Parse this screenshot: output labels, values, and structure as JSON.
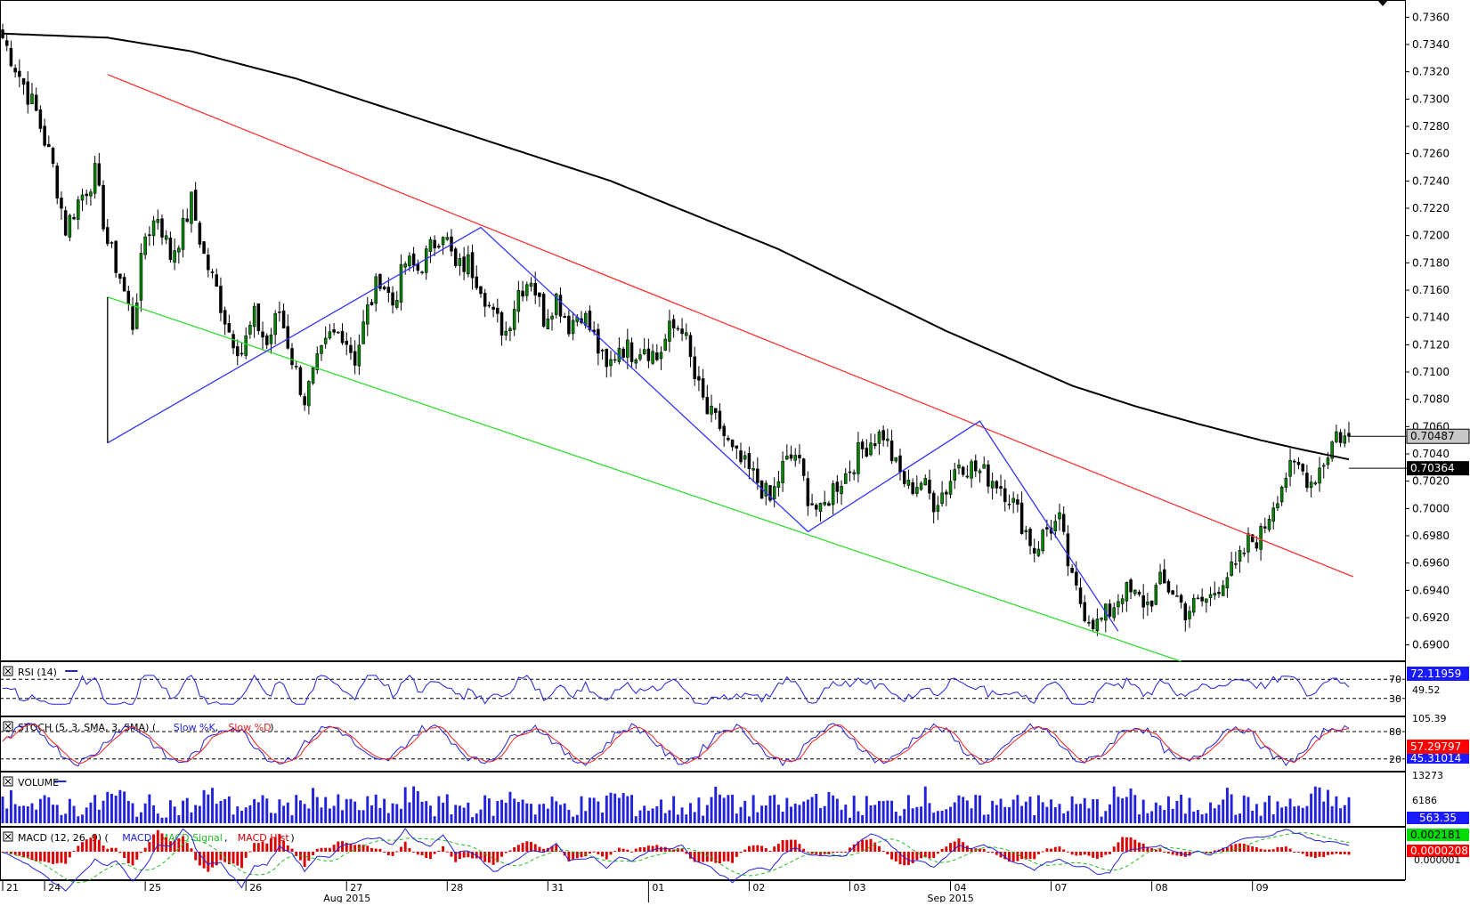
{
  "chart_data": {
    "type": "candlestick",
    "instrument_timeframe": "hourly",
    "price_axis": {
      "ylim": [
        0.689,
        0.737
      ],
      "ticks": [
        "0.7360",
        "0.7340",
        "0.7320",
        "0.7300",
        "0.7280",
        "0.7260",
        "0.7240",
        "0.7220",
        "0.7200",
        "0.7180",
        "0.7160",
        "0.7140",
        "0.7120",
        "0.7100",
        "0.7080",
        "0.7060",
        "0.7040",
        "0.7020",
        "0.7000",
        "0.6980",
        "0.6960",
        "0.6940",
        "0.6920",
        "0.6900"
      ],
      "current_price_label": "0.70487",
      "ma_price_label": "0.70364"
    },
    "x_axis": {
      "day_labels": [
        "21",
        "24",
        "25",
        "26",
        "27",
        "28",
        "31",
        "01",
        "02",
        "03",
        "04",
        "07",
        "08",
        "09"
      ],
      "month_labels": [
        "Aug 2015",
        "Sep 2015"
      ]
    },
    "price_anchors": [
      [
        0,
        0.7345
      ],
      [
        8,
        0.729
      ],
      [
        12,
        0.725
      ],
      [
        15,
        0.7205
      ],
      [
        18,
        0.7225
      ],
      [
        22,
        0.7245
      ],
      [
        25,
        0.7195
      ],
      [
        28,
        0.717
      ],
      [
        31,
        0.7135
      ],
      [
        34,
        0.72
      ],
      [
        37,
        0.7215
      ],
      [
        40,
        0.7185
      ],
      [
        43,
        0.7205
      ],
      [
        45,
        0.7225
      ],
      [
        48,
        0.7185
      ],
      [
        51,
        0.716
      ],
      [
        54,
        0.713
      ],
      [
        57,
        0.7115
      ],
      [
        60,
        0.714
      ],
      [
        63,
        0.712
      ],
      [
        66,
        0.7145
      ],
      [
        69,
        0.711
      ],
      [
        72,
        0.708
      ],
      [
        75,
        0.7105
      ],
      [
        78,
        0.7125
      ],
      [
        81,
        0.713
      ],
      [
        84,
        0.711
      ],
      [
        87,
        0.7145
      ],
      [
        90,
        0.717
      ],
      [
        93,
        0.715
      ],
      [
        96,
        0.718
      ],
      [
        99,
        0.7175
      ],
      [
        102,
        0.719
      ],
      [
        105,
        0.7205
      ],
      [
        108,
        0.7175
      ],
      [
        111,
        0.718
      ],
      [
        114,
        0.7165
      ],
      [
        117,
        0.714
      ],
      [
        120,
        0.713
      ],
      [
        123,
        0.716
      ],
      [
        126,
        0.717
      ],
      [
        129,
        0.714
      ],
      [
        132,
        0.7155
      ],
      [
        135,
        0.7135
      ],
      [
        138,
        0.7145
      ],
      [
        141,
        0.7125
      ],
      [
        144,
        0.71
      ],
      [
        147,
        0.712
      ],
      [
        150,
        0.7115
      ],
      [
        153,
        0.712
      ],
      [
        156,
        0.711
      ],
      [
        159,
        0.713
      ],
      [
        162,
        0.7135
      ],
      [
        165,
        0.7095
      ],
      [
        168,
        0.707
      ],
      [
        171,
        0.706
      ],
      [
        174,
        0.704
      ],
      [
        177,
        0.703
      ],
      [
        180,
        0.702
      ],
      [
        183,
        0.7005
      ],
      [
        186,
        0.703
      ],
      [
        189,
        0.704
      ],
      [
        192,
        0.701
      ],
      [
        195,
        0.6995
      ],
      [
        198,
        0.7015
      ],
      [
        201,
        0.7025
      ],
      [
        204,
        0.704
      ],
      [
        207,
        0.705
      ],
      [
        210,
        0.7055
      ],
      [
        213,
        0.703
      ],
      [
        216,
        0.7015
      ],
      [
        219,
        0.702
      ],
      [
        222,
        0.7005
      ],
      [
        225,
        0.7015
      ],
      [
        228,
        0.7035
      ],
      [
        231,
        0.703
      ],
      [
        234,
        0.7025
      ],
      [
        237,
        0.702
      ],
      [
        240,
        0.701
      ],
      [
        243,
        0.699
      ],
      [
        246,
        0.697
      ],
      [
        249,
        0.6985
      ],
      [
        252,
        0.699
      ],
      [
        255,
        0.6945
      ],
      [
        258,
        0.6925
      ],
      [
        261,
        0.6915
      ],
      [
        264,
        0.6925
      ],
      [
        267,
        0.694
      ],
      [
        270,
        0.6935
      ],
      [
        273,
        0.693
      ],
      [
        276,
        0.6945
      ],
      [
        279,
        0.694
      ],
      [
        282,
        0.6925
      ],
      [
        285,
        0.693
      ],
      [
        288,
        0.6935
      ],
      [
        291,
        0.695
      ],
      [
        294,
        0.6955
      ],
      [
        297,
        0.6975
      ],
      [
        300,
        0.698
      ],
      [
        303,
        0.7005
      ],
      [
        306,
        0.7025
      ],
      [
        309,
        0.703
      ],
      [
        312,
        0.702
      ],
      [
        315,
        0.7035
      ],
      [
        318,
        0.7055
      ],
      [
        321,
        0.705
      ]
    ],
    "sma_200": [
      [
        0,
        0.7348
      ],
      [
        25,
        0.7345
      ],
      [
        45,
        0.7335
      ],
      [
        70,
        0.7315
      ],
      [
        95,
        0.729
      ],
      [
        120,
        0.7265
      ],
      [
        145,
        0.724
      ],
      [
        165,
        0.7215
      ],
      [
        185,
        0.719
      ],
      [
        205,
        0.716
      ],
      [
        225,
        0.713
      ],
      [
        240,
        0.711
      ],
      [
        255,
        0.709
      ],
      [
        270,
        0.7075
      ],
      [
        285,
        0.7062
      ],
      [
        300,
        0.705
      ],
      [
        310,
        0.7043
      ],
      [
        321,
        0.7036
      ]
    ],
    "trendlines": [
      {
        "name": "channel-upper",
        "color": "#ff3333",
        "points": [
          [
            25,
            0.7318
          ],
          [
            322,
            0.695
          ]
        ]
      },
      {
        "name": "channel-lower",
        "color": "#33dd33",
        "points": [
          [
            25,
            0.7155
          ],
          [
            281,
            0.6888
          ]
        ]
      },
      {
        "name": "abcd-pattern",
        "color": "#3333ff",
        "points": [
          [
            25,
            0.7048
          ],
          [
            114,
            0.7206
          ],
          [
            192,
            0.6983
          ],
          [
            233,
            0.7064
          ],
          [
            266,
            0.691
          ]
        ]
      },
      {
        "name": "vertical-marker",
        "color": "#000000",
        "points": [
          [
            25,
            0.7155
          ],
          [
            25,
            0.7048
          ]
        ]
      }
    ],
    "indicators": {
      "rsi": {
        "label": "RSI (14)",
        "period": 14,
        "ylim": [
          0,
          100
        ],
        "levels": [
          70,
          30
        ],
        "tick_labels": [
          "70",
          "49.52",
          "30"
        ],
        "current_label": "72.11959",
        "color": "#2222dd"
      },
      "stoch": {
        "label": "STOCH (5, 3, SMA, 3, SMA)",
        "k_label": "Slow %K",
        "d_label": "Slow %D",
        "ylim": [
          0,
          105.39
        ],
        "levels": [
          80,
          20
        ],
        "tick_labels": [
          "105.39",
          "80",
          "20"
        ],
        "k_current_label": "45.31014",
        "d_current_label": "57.29797",
        "k_color": "#2222dd",
        "d_color": "#ee2222"
      },
      "volume": {
        "label": "VOLUME",
        "ylim": [
          0,
          13273
        ],
        "tick_labels": [
          "13273",
          "6186"
        ],
        "current_label": "563.35",
        "color": "#2222dd"
      },
      "macd": {
        "label": "MACD (12, 26, 9)",
        "parts": [
          "MACD",
          "MACD Signal",
          "MACD Hist"
        ],
        "ylim": [
          -0.0035,
          0.003
        ],
        "current_macd_label": "0.002181",
        "current_hist_label": "0.0000208",
        "signal_label_partial": "0.000001",
        "macd_color": "#2222dd",
        "signal_color": "#22bb22",
        "hist_color": "#dd0000"
      }
    },
    "colors": {
      "up_candle": "#008800",
      "down_candle": "#000000",
      "grid": "#000000",
      "background": "#ffffff"
    }
  }
}
